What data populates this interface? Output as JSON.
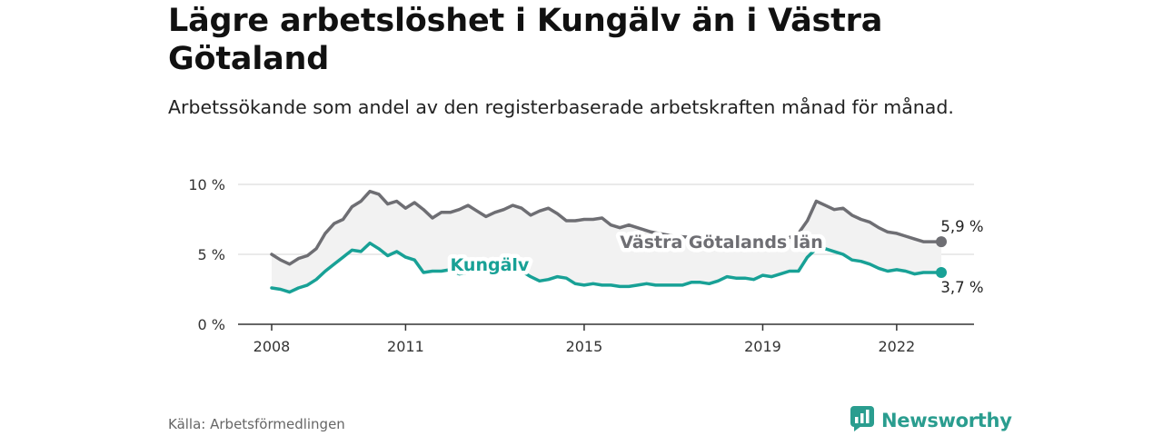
{
  "title": "Lägre arbetslöshet i Kungälv än i Västra Götaland",
  "subtitle": "Arbetssökande som andel av den registerbaserade arbetskraften månad för månad.",
  "source": "Källa: Arbetsförmedlingen",
  "brand": {
    "name": "Newsworthy",
    "icon": "newsworthy-logo-icon",
    "color": "#2a9d8f"
  },
  "colors": {
    "kungalv": "#18a196",
    "vastra": "#6e6e73",
    "band": "#f2f2f2",
    "grid": "#dddddd",
    "axis": "#333333"
  },
  "chart_data": {
    "type": "line",
    "title": "Lägre arbetslöshet i Kungälv än i Västra Götaland",
    "subtitle": "Arbetssökande som andel av den registerbaserade arbetskraften månad för månad.",
    "xlabel": "",
    "ylabel": "",
    "xlim": [
      2008.0,
      2023.6
    ],
    "ylim": [
      0,
      10
    ],
    "x_ticks": [
      {
        "value": 2008,
        "label": "2008"
      },
      {
        "value": 2011,
        "label": "2011"
      },
      {
        "value": 2015,
        "label": "2015"
      },
      {
        "value": 2019,
        "label": "2019"
      },
      {
        "value": 2022,
        "label": "2022"
      }
    ],
    "y_ticks": [
      {
        "value": 0,
        "label": "0 %"
      },
      {
        "value": 5,
        "label": "5 %"
      },
      {
        "value": 10,
        "label": "10 %"
      }
    ],
    "grid": true,
    "legend": "none",
    "series": [
      {
        "name": "Västra Götalands län",
        "color": "#6e6e73",
        "end_label": "5,9 %",
        "x": [
          2008.0,
          2008.2,
          2008.4,
          2008.6,
          2008.8,
          2009.0,
          2009.2,
          2009.4,
          2009.6,
          2009.8,
          2010.0,
          2010.2,
          2010.4,
          2010.6,
          2010.8,
          2011.0,
          2011.2,
          2011.4,
          2011.6,
          2011.8,
          2012.0,
          2012.2,
          2012.4,
          2012.6,
          2012.8,
          2013.0,
          2013.2,
          2013.4,
          2013.6,
          2013.8,
          2014.0,
          2014.2,
          2014.4,
          2014.6,
          2014.8,
          2015.0,
          2015.2,
          2015.4,
          2015.6,
          2015.8,
          2016.0,
          2016.5,
          2017.0,
          2017.5,
          2018.0,
          2018.5,
          2019.0,
          2019.4,
          2019.6,
          2019.8,
          2020.0,
          2020.2,
          2020.4,
          2020.6,
          2020.8,
          2021.0,
          2021.2,
          2021.4,
          2021.6,
          2021.8,
          2022.0,
          2022.2,
          2022.4,
          2022.6,
          2022.8,
          2023.0
        ],
        "values": [
          5.0,
          4.6,
          4.3,
          4.7,
          4.9,
          5.4,
          6.5,
          7.2,
          7.5,
          8.4,
          8.8,
          9.5,
          9.3,
          8.6,
          8.8,
          8.3,
          8.7,
          8.2,
          7.6,
          8.0,
          8.0,
          8.2,
          8.5,
          8.1,
          7.7,
          8.0,
          8.2,
          8.5,
          8.3,
          7.8,
          8.1,
          8.3,
          7.9,
          7.4,
          7.4,
          7.5,
          7.5,
          7.6,
          7.1,
          6.9,
          7.1,
          6.6,
          6.3,
          6.2,
          6.0,
          5.9,
          5.9,
          6.0,
          6.2,
          6.5,
          7.4,
          8.8,
          8.5,
          8.2,
          8.3,
          7.8,
          7.5,
          7.3,
          6.9,
          6.6,
          6.5,
          6.3,
          6.1,
          5.9,
          5.9,
          5.9
        ]
      },
      {
        "name": "Kungälv",
        "color": "#18a196",
        "end_label": "3,7 %",
        "x": [
          2008.0,
          2008.2,
          2008.4,
          2008.6,
          2008.8,
          2009.0,
          2009.2,
          2009.4,
          2009.6,
          2009.8,
          2010.0,
          2010.2,
          2010.4,
          2010.6,
          2010.8,
          2011.0,
          2011.2,
          2011.4,
          2011.6,
          2011.8,
          2012.0,
          2012.2,
          2012.4,
          2012.6,
          2012.8,
          2013.0,
          2013.2,
          2013.4,
          2013.6,
          2013.8,
          2014.0,
          2014.2,
          2014.4,
          2014.6,
          2014.8,
          2015.0,
          2015.2,
          2015.4,
          2015.6,
          2015.8,
          2016.0,
          2016.2,
          2016.4,
          2016.6,
          2016.8,
          2017.0,
          2017.2,
          2017.4,
          2017.6,
          2017.8,
          2018.0,
          2018.2,
          2018.4,
          2018.6,
          2018.8,
          2019.0,
          2019.2,
          2019.4,
          2019.6,
          2019.8,
          2020.0,
          2020.2,
          2020.4,
          2020.6,
          2020.8,
          2021.0,
          2021.2,
          2021.4,
          2021.6,
          2021.8,
          2022.0,
          2022.2,
          2022.4,
          2022.6,
          2022.8,
          2023.0
        ],
        "values": [
          2.6,
          2.5,
          2.3,
          2.6,
          2.8,
          3.2,
          3.8,
          4.3,
          4.8,
          5.3,
          5.2,
          5.8,
          5.4,
          4.9,
          5.2,
          4.8,
          4.6,
          3.7,
          3.8,
          3.8,
          3.9,
          3.6,
          3.7,
          3.8,
          3.9,
          3.8,
          3.7,
          3.9,
          3.8,
          3.4,
          3.1,
          3.2,
          3.4,
          3.3,
          2.9,
          2.8,
          2.9,
          2.8,
          2.8,
          2.7,
          2.7,
          2.8,
          2.9,
          2.8,
          2.8,
          2.8,
          2.8,
          3.0,
          3.0,
          2.9,
          3.1,
          3.4,
          3.3,
          3.3,
          3.2,
          3.5,
          3.4,
          3.6,
          3.8,
          3.8,
          4.8,
          5.4,
          5.4,
          5.2,
          5.0,
          4.6,
          4.5,
          4.3,
          4.0,
          3.8,
          3.9,
          3.8,
          3.6,
          3.7,
          3.7,
          3.7
        ]
      }
    ]
  }
}
